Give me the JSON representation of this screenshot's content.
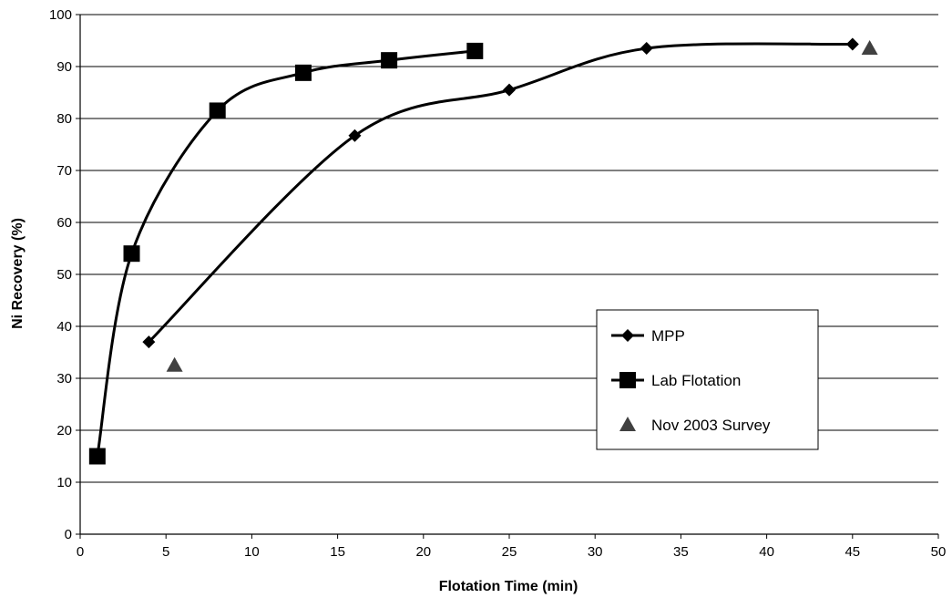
{
  "chart_data": {
    "type": "line",
    "title": "",
    "xlabel": "Flotation Time (min)",
    "ylabel": "Ni Recovery (%)",
    "xlim": [
      0,
      50
    ],
    "ylim": [
      0,
      100
    ],
    "xticks": [
      0,
      5,
      10,
      15,
      20,
      25,
      30,
      35,
      40,
      45,
      50
    ],
    "yticks": [
      0,
      10,
      20,
      30,
      40,
      50,
      60,
      70,
      80,
      90,
      100
    ],
    "grid": "horizontal",
    "legend_position": "right",
    "series": [
      {
        "name": "MPP",
        "marker": "diamond",
        "line": "smooth",
        "color": "#000000",
        "x": [
          4,
          16,
          25,
          33,
          45
        ],
        "y": [
          37,
          76.7,
          85.5,
          93.5,
          94.3
        ]
      },
      {
        "name": "Lab Flotation",
        "marker": "square",
        "line": "smooth",
        "color": "#000000",
        "x": [
          1,
          3,
          8,
          13,
          18,
          23
        ],
        "y": [
          15,
          54,
          81.5,
          88.8,
          91.2,
          93
        ]
      },
      {
        "name": "Nov 2003 Survey",
        "marker": "triangle",
        "line": "none",
        "color": "#404040",
        "x": [
          5.5,
          46
        ],
        "y": [
          32.5,
          93.5
        ]
      }
    ]
  }
}
